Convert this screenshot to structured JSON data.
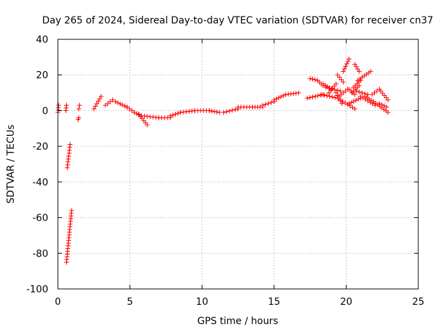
{
  "chart_data": {
    "type": "scatter",
    "title": "Day 265 of 2024, Sidereal Day-to-day VTEC variation (SDTVAR) for receiver cn37",
    "xlabel": "GPS time / hours",
    "ylabel": "SDTVAR / TECUs",
    "xlim": [
      0,
      25
    ],
    "ylim": [
      -100,
      40
    ],
    "xticks": [
      0,
      5,
      10,
      15,
      20,
      25
    ],
    "yticks": [
      -100,
      -80,
      -60,
      -40,
      -20,
      0,
      20,
      40
    ],
    "grid": true,
    "marker": "+",
    "series_color": "#ff0000",
    "segments": [
      {
        "x": [
          0.0,
          0.05
        ],
        "y": [
          -1,
          3
        ]
      },
      {
        "x": [
          0.55,
          0.6
        ],
        "y": [
          0,
          3
        ]
      },
      {
        "x": [
          0.65,
          0.85
        ],
        "y": [
          -32,
          -19
        ]
      },
      {
        "x": [
          0.6,
          0.95
        ],
        "y": [
          -85,
          -56
        ]
      },
      {
        "x": [
          1.4,
          1.45
        ],
        "y": [
          -5,
          -4
        ]
      },
      {
        "x": [
          1.45,
          1.5
        ],
        "y": [
          1,
          3
        ]
      },
      {
        "x": [
          2.5,
          3.0
        ],
        "y": [
          1,
          8
        ]
      },
      {
        "x": [
          3.3,
          3.8
        ],
        "y": [
          3,
          6
        ]
      },
      {
        "x": [
          4.0,
          4.8
        ],
        "y": [
          5,
          2
        ]
      },
      {
        "x": [
          4.8,
          5.3
        ],
        "y": [
          2,
          -1
        ]
      },
      {
        "x": [
          5.3,
          5.8
        ],
        "y": [
          -1,
          -3
        ]
      },
      {
        "x": [
          5.6,
          6.2
        ],
        "y": [
          -2,
          -8
        ]
      },
      {
        "x": [
          6.0,
          7.0
        ],
        "y": [
          -3,
          -4
        ]
      },
      {
        "x": [
          7.0,
          7.8
        ],
        "y": [
          -4,
          -4
        ]
      },
      {
        "x": [
          7.8,
          8.5
        ],
        "y": [
          -3,
          -1
        ]
      },
      {
        "x": [
          8.5,
          9.5
        ],
        "y": [
          -1,
          0
        ]
      },
      {
        "x": [
          9.5,
          10.5
        ],
        "y": [
          0,
          0
        ]
      },
      {
        "x": [
          10.5,
          11.2
        ],
        "y": [
          0,
          -1
        ]
      },
      {
        "x": [
          11.5,
          12.5
        ],
        "y": [
          -1,
          1
        ]
      },
      {
        "x": [
          12.5,
          13.5
        ],
        "y": [
          2,
          2
        ]
      },
      {
        "x": [
          13.5,
          14.2
        ],
        "y": [
          2,
          2
        ]
      },
      {
        "x": [
          14.2,
          15.0
        ],
        "y": [
          3,
          5
        ]
      },
      {
        "x": [
          15.0,
          15.8
        ],
        "y": [
          6,
          9
        ]
      },
      {
        "x": [
          15.8,
          16.7
        ],
        "y": [
          9,
          10
        ]
      },
      {
        "x": [
          17.3,
          18.4
        ],
        "y": [
          7,
          9
        ]
      },
      {
        "x": [
          17.5,
          18.0
        ],
        "y": [
          18,
          17
        ]
      },
      {
        "x": [
          18.0,
          18.4
        ],
        "y": [
          17,
          14
        ]
      },
      {
        "x": [
          18.4,
          19.0
        ],
        "y": [
          15,
          12
        ]
      },
      {
        "x": [
          18.3,
          19.4
        ],
        "y": [
          9,
          7
        ]
      },
      {
        "x": [
          18.6,
          19.6
        ],
        "y": [
          13,
          11
        ]
      },
      {
        "x": [
          18.8,
          19.3
        ],
        "y": [
          10,
          15
        ]
      },
      {
        "x": [
          19.3,
          19.7
        ],
        "y": [
          10,
          4
        ]
      },
      {
        "x": [
          19.4,
          19.8
        ],
        "y": [
          20,
          16
        ]
      },
      {
        "x": [
          19.5,
          20.1
        ],
        "y": [
          8,
          12
        ]
      },
      {
        "x": [
          19.6,
          20.6
        ],
        "y": [
          6,
          1
        ]
      },
      {
        "x": [
          19.8,
          20.2
        ],
        "y": [
          22,
          29
        ]
      },
      {
        "x": [
          20.2,
          20.6
        ],
        "y": [
          12,
          9
        ]
      },
      {
        "x": [
          20.2,
          21.0
        ],
        "y": [
          4,
          7
        ]
      },
      {
        "x": [
          20.4,
          20.9
        ],
        "y": [
          10,
          14
        ]
      },
      {
        "x": [
          20.5,
          21.0
        ],
        "y": [
          13,
          17
        ]
      },
      {
        "x": [
          20.6,
          20.9
        ],
        "y": [
          26,
          22
        ]
      },
      {
        "x": [
          20.7,
          21.5
        ],
        "y": [
          11,
          9
        ]
      },
      {
        "x": [
          20.8,
          21.7
        ],
        "y": [
          17,
          22
        ]
      },
      {
        "x": [
          21.0,
          22.0
        ],
        "y": [
          8,
          3
        ]
      },
      {
        "x": [
          21.3,
          21.9
        ],
        "y": [
          8,
          5
        ]
      },
      {
        "x": [
          21.8,
          22.3
        ],
        "y": [
          9,
          12
        ]
      },
      {
        "x": [
          21.9,
          22.9
        ],
        "y": [
          5,
          -1
        ]
      },
      {
        "x": [
          22.3,
          22.8
        ],
        "y": [
          4,
          2
        ]
      },
      {
        "x": [
          22.4,
          22.9
        ],
        "y": [
          11,
          6
        ]
      }
    ]
  }
}
